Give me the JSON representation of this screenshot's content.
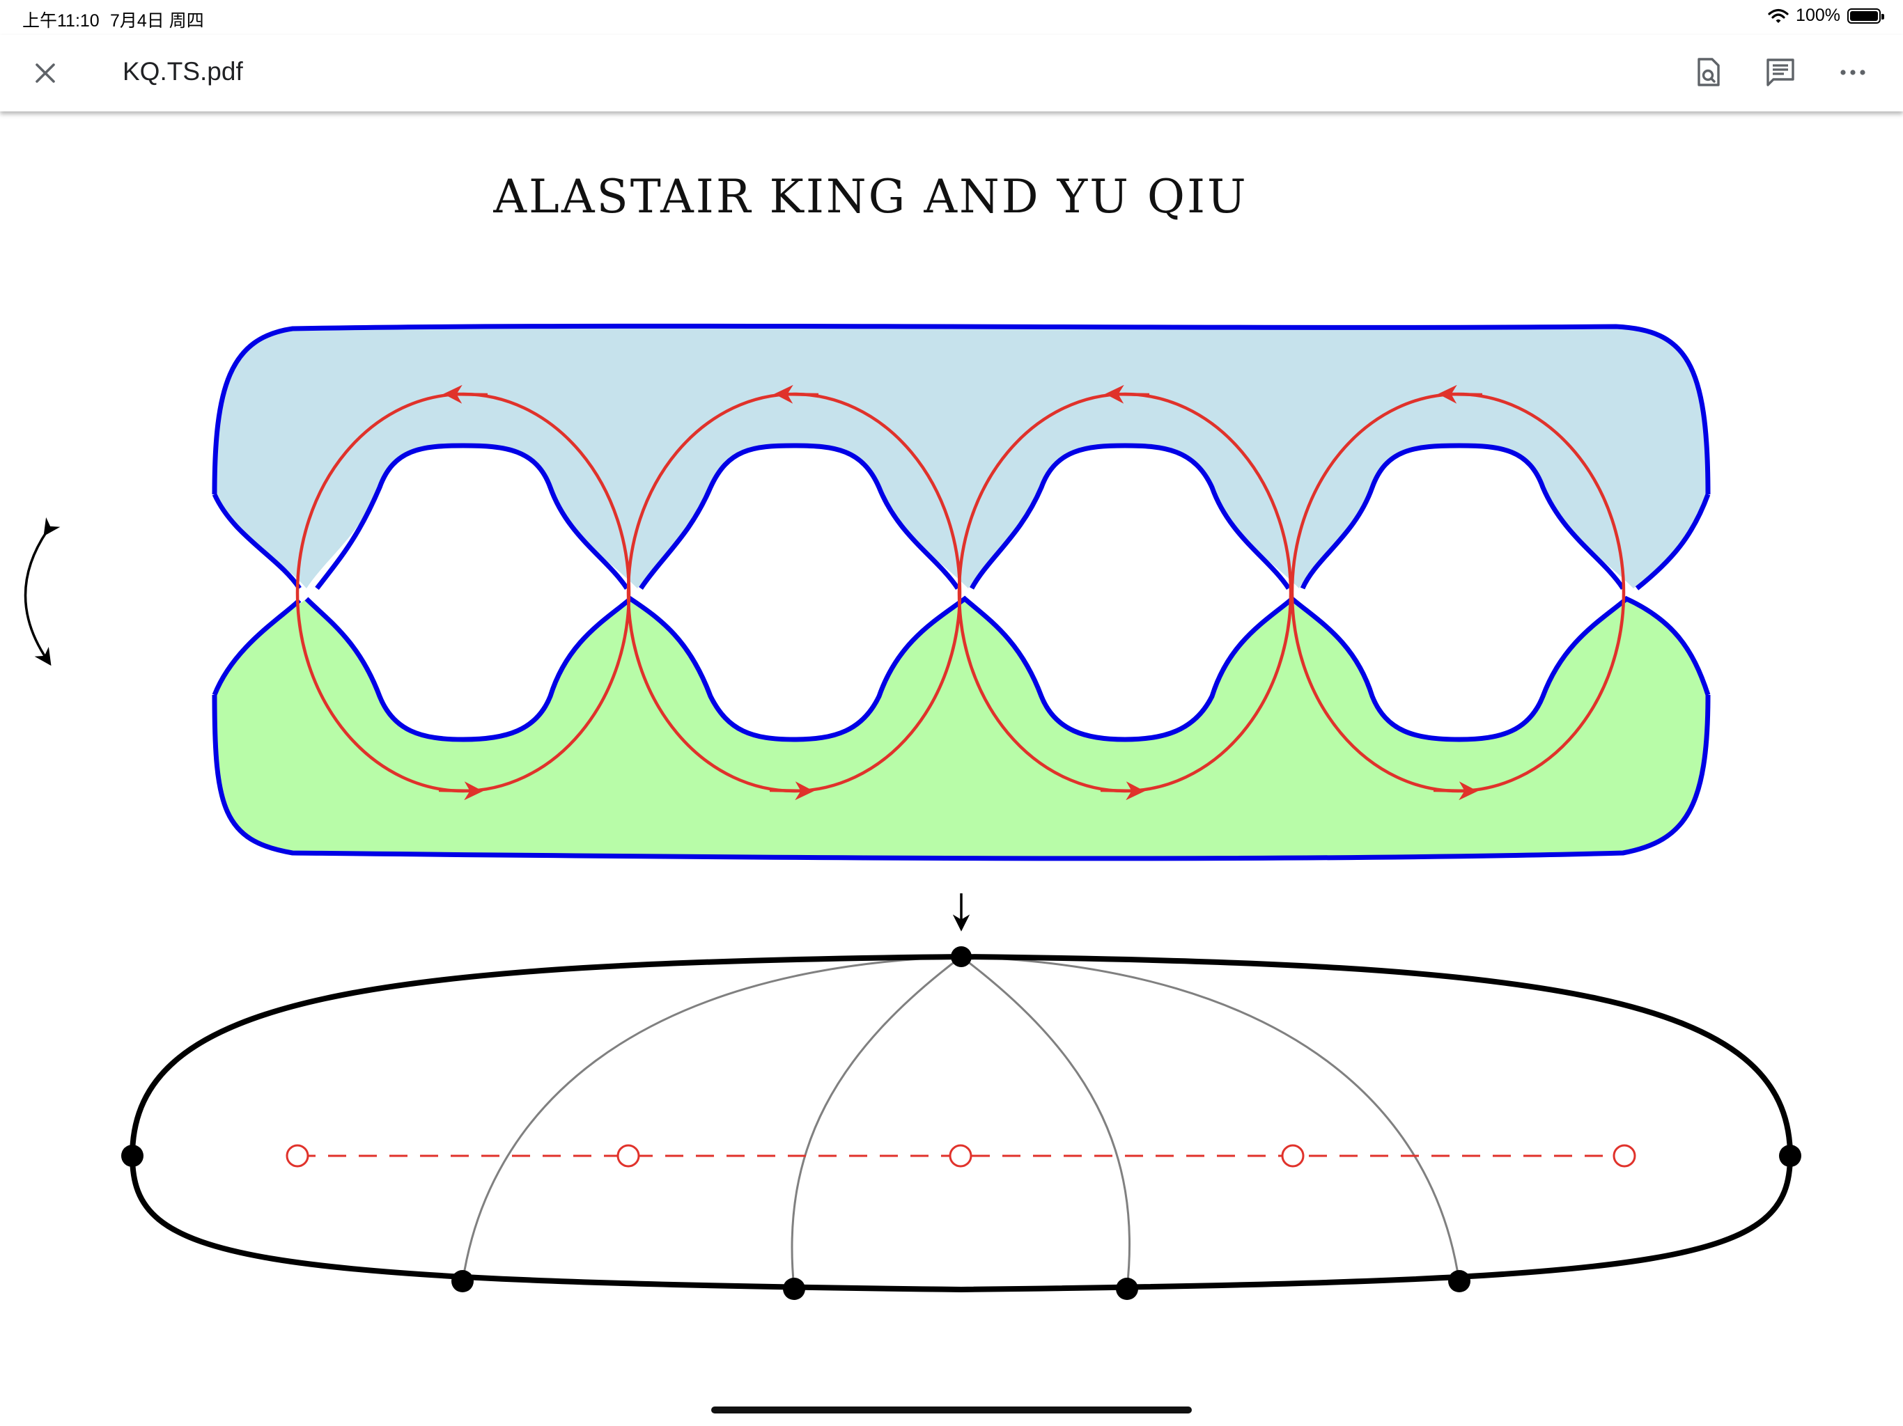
{
  "status_bar": {
    "time": "上午11:10",
    "date": "7月4日 周四",
    "battery_percent": "100%",
    "icons": [
      "wifi-icon",
      "battery-icon"
    ]
  },
  "toolbar": {
    "close_icon": "close-icon",
    "file_name": "KQ.TS.pdf",
    "actions": [
      "find-in-page-icon",
      "comment-icon",
      "more-icon"
    ]
  },
  "page": {
    "author_line": "ALASTAIR KING AND YU QIU"
  },
  "figure": {
    "colors": {
      "boundary_blue": "#0000e6",
      "top_fill": "#c6e2ec",
      "bottom_fill": "#b8fca8",
      "cycle_red": "#e0322b",
      "graph_black": "#000000",
      "arc_gray": "#808080"
    }
  }
}
